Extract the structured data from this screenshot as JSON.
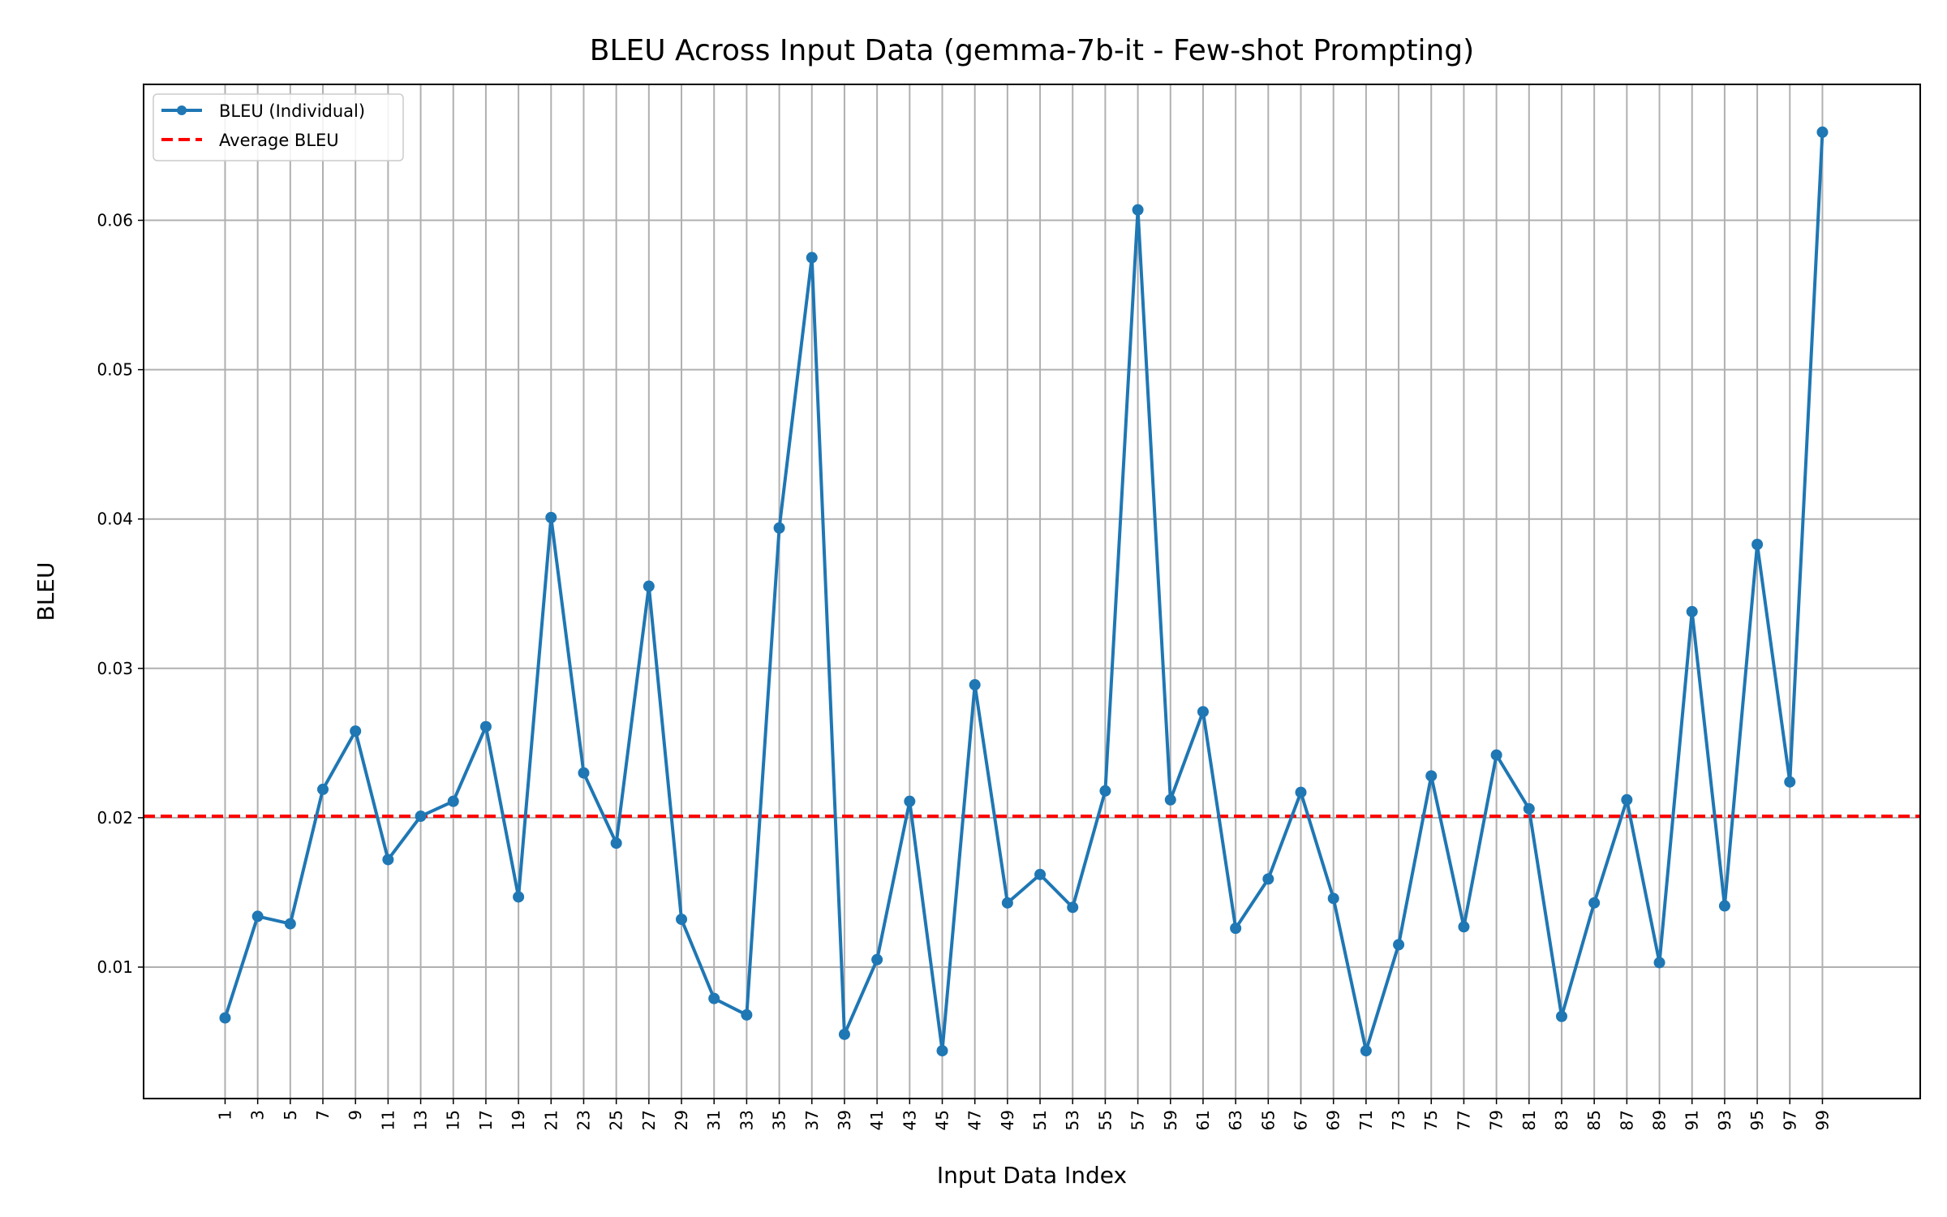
{
  "chart_data": {
    "type": "line",
    "title": "BLEU Across Input Data (gemma-7b-it - Few-shot Prompting)",
    "xlabel": "Input Data Index",
    "ylabel": "BLEU",
    "x": [
      1,
      3,
      5,
      7,
      9,
      11,
      13,
      15,
      17,
      19,
      21,
      23,
      25,
      27,
      29,
      31,
      33,
      35,
      37,
      39,
      41,
      43,
      45,
      47,
      49,
      51,
      53,
      55,
      57,
      59,
      61,
      63,
      65,
      67,
      69,
      71,
      73,
      75,
      77,
      79,
      81,
      83,
      85,
      87,
      89,
      91,
      93,
      95,
      97,
      99
    ],
    "xticks": [
      "1",
      "3",
      "5",
      "7",
      "9",
      "11",
      "13",
      "15",
      "17",
      "19",
      "21",
      "23",
      "25",
      "27",
      "29",
      "31",
      "33",
      "35",
      "37",
      "39",
      "41",
      "43",
      "45",
      "47",
      "49",
      "51",
      "53",
      "55",
      "57",
      "59",
      "61",
      "63",
      "65",
      "67",
      "69",
      "71",
      "73",
      "75",
      "77",
      "79",
      "81",
      "83",
      "85",
      "87",
      "89",
      "91",
      "93",
      "95",
      "97",
      "99"
    ],
    "yticks": [
      "0.01",
      "0.02",
      "0.03",
      "0.04",
      "0.05",
      "0.06"
    ],
    "ylim": [
      0.0012,
      0.0691
    ],
    "xlim": [
      -4,
      105
    ],
    "grid": true,
    "legend_position": "top-left",
    "series": [
      {
        "name": "BLEU (Individual)",
        "color": "#1f77b4",
        "style": "line-with-markers",
        "values": [
          0.0066,
          0.0134,
          0.0129,
          0.0219,
          0.0258,
          0.0172,
          0.0201,
          0.0211,
          0.0261,
          0.0147,
          0.0401,
          0.023,
          0.0183,
          0.0355,
          0.0132,
          0.0079,
          0.0068,
          0.0394,
          0.0575,
          0.0055,
          0.0105,
          0.0211,
          0.0044,
          0.0289,
          0.0143,
          0.0162,
          0.014,
          0.0218,
          0.0607,
          0.0212,
          0.0271,
          0.0126,
          0.0159,
          0.0217,
          0.0146,
          0.0044,
          0.0115,
          0.0228,
          0.0127,
          0.0242,
          0.0206,
          0.0067,
          0.0143,
          0.0212,
          0.0103,
          0.0338,
          0.0141,
          0.0383,
          0.0224,
          0.0659
        ]
      },
      {
        "name": "Average BLEU",
        "color": "#ff0000",
        "style": "dashed",
        "value": 0.0201
      }
    ]
  }
}
